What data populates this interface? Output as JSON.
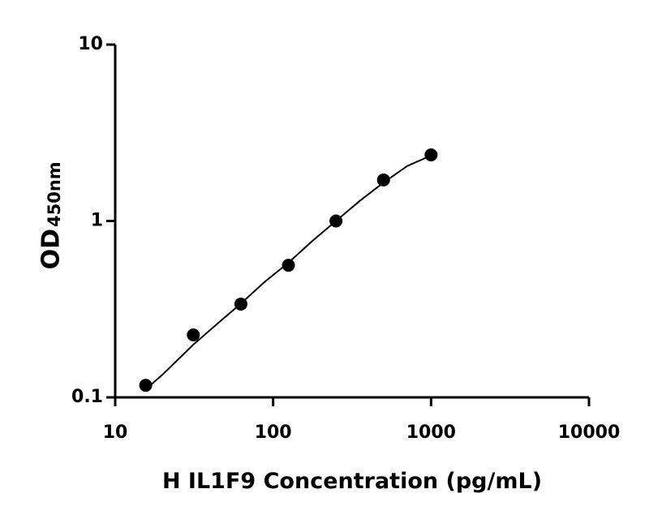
{
  "chart_data": {
    "type": "scatter",
    "x_label": "H IL1F9 Concentration (pg/mL)",
    "y_label": "OD",
    "y_label_sub": "450nm",
    "xscale": "log",
    "yscale": "log",
    "xlim": [
      10,
      10000
    ],
    "xticks": [
      10,
      100,
      1000,
      10000
    ],
    "ylim": [
      0.1,
      10
    ],
    "yticks": [
      0.1,
      1,
      10
    ],
    "color": "#000000",
    "x": [
      15.6,
      31.25,
      62.5,
      125,
      250,
      500,
      1000
    ],
    "values": [
      0.117,
      0.226,
      0.338,
      0.561,
      1.0,
      1.71,
      2.37
    ],
    "fit": {
      "x": [
        15.6,
        20,
        31.25,
        44,
        62.5,
        88,
        125,
        177,
        250,
        354,
        500,
        707,
        1000
      ],
      "values": [
        0.111,
        0.135,
        0.199,
        0.26,
        0.34,
        0.45,
        0.58,
        0.77,
        1.0,
        1.3,
        1.65,
        2.05,
        2.35
      ]
    }
  }
}
